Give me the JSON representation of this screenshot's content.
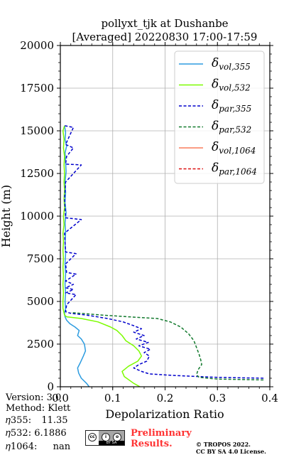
{
  "chart_data": {
    "type": "line",
    "title": "pollyxt_tjk at Dushanbe",
    "subtitle": "[Averaged] 20220830 17:00-17:59",
    "xlabel": "Depolarization Ratio",
    "ylabel": "Height (m)",
    "xlim": [
      0,
      0.4
    ],
    "ylim": [
      0,
      20000
    ],
    "x_ticks": [
      "0.0",
      "0.1",
      "0.2",
      "0.3",
      "0.4"
    ],
    "y_ticks": [
      "0",
      "2500",
      "5000",
      "7500",
      "10000",
      "12500",
      "15000",
      "17500",
      "20000"
    ],
    "grid": true,
    "legend_position": "top-right",
    "legend": [
      {
        "math": "vol",
        "sub": "355",
        "color": "#2d9ce0",
        "style": "solid"
      },
      {
        "math": "vol",
        "sub": "532",
        "color": "#7cfc00",
        "style": "solid"
      },
      {
        "math": "par",
        "sub": "355",
        "color": "#0000cc",
        "style": "dashed"
      },
      {
        "math": "par",
        "sub": "532",
        "color": "#137a2e",
        "style": "dashed"
      },
      {
        "math": "vol",
        "sub": "1064",
        "color": "#fa7d5c",
        "style": "solid"
      },
      {
        "math": "par",
        "sub": "1064",
        "color": "#dd1111",
        "style": "dashed"
      }
    ],
    "series": [
      {
        "color": "#2d9ce0",
        "style": "solid",
        "points": [
          [
            0.055,
            0
          ],
          [
            0.05,
            200
          ],
          [
            0.04,
            500
          ],
          [
            0.035,
            800
          ],
          [
            0.033,
            1100
          ],
          [
            0.038,
            1400
          ],
          [
            0.044,
            1800
          ],
          [
            0.048,
            2100
          ],
          [
            0.046,
            2500
          ],
          [
            0.04,
            2800
          ],
          [
            0.033,
            3000
          ],
          [
            0.036,
            3300
          ],
          [
            0.028,
            3500
          ],
          [
            0.018,
            3700
          ],
          [
            0.012,
            3900
          ],
          [
            0.009,
            4100
          ],
          [
            0.008,
            4300
          ],
          [
            0.01,
            4600
          ],
          [
            0.009,
            5000
          ],
          [
            0.01,
            5500
          ],
          [
            0.009,
            6000
          ],
          [
            0.01,
            6600
          ],
          [
            0.009,
            7200
          ],
          [
            0.01,
            7800
          ],
          [
            0.009,
            8400
          ],
          [
            0.01,
            9000
          ],
          [
            0.009,
            9600
          ],
          [
            0.011,
            10200
          ],
          [
            0.009,
            10800
          ],
          [
            0.01,
            11400
          ],
          [
            0.009,
            12000
          ],
          [
            0.011,
            12600
          ],
          [
            0.01,
            13200
          ],
          [
            0.009,
            13700
          ],
          [
            0.012,
            14100
          ],
          [
            0.009,
            14500
          ],
          [
            0.01,
            14900
          ],
          [
            0.008,
            15300
          ]
        ]
      },
      {
        "color": "#7cfc00",
        "style": "solid",
        "points": [
          [
            0.152,
            0
          ],
          [
            0.14,
            200
          ],
          [
            0.122,
            600
          ],
          [
            0.118,
            900
          ],
          [
            0.13,
            1200
          ],
          [
            0.148,
            1500
          ],
          [
            0.155,
            1800
          ],
          [
            0.15,
            2100
          ],
          [
            0.14,
            2400
          ],
          [
            0.125,
            2700
          ],
          [
            0.118,
            3000
          ],
          [
            0.108,
            3300
          ],
          [
            0.096,
            3500
          ],
          [
            0.072,
            3800
          ],
          [
            0.04,
            4000
          ],
          [
            0.012,
            4100
          ],
          [
            0.008,
            4200
          ],
          [
            0.005,
            4600
          ],
          [
            0.005,
            5000
          ],
          [
            0.006,
            5500
          ],
          [
            0.005,
            6000
          ],
          [
            0.006,
            6500
          ],
          [
            0.005,
            7000
          ],
          [
            0.006,
            7500
          ],
          [
            0.005,
            8000
          ],
          [
            0.006,
            8500
          ],
          [
            0.005,
            9000
          ],
          [
            0.007,
            9500
          ],
          [
            0.006,
            10000
          ],
          [
            0.008,
            10500
          ],
          [
            0.007,
            11000
          ],
          [
            0.008,
            11500
          ],
          [
            0.007,
            12000
          ],
          [
            0.008,
            12500
          ],
          [
            0.007,
            13000
          ],
          [
            0.008,
            13500
          ],
          [
            0.006,
            14000
          ],
          [
            0.007,
            14500
          ],
          [
            0.005,
            15000
          ],
          [
            0.008,
            15300
          ]
        ]
      },
      {
        "color": "#0000cc",
        "style": "dashed",
        "points": [
          [
            0.388,
            500
          ],
          [
            0.3,
            550
          ],
          [
            0.225,
            650
          ],
          [
            0.17,
            750
          ],
          [
            0.155,
            900
          ],
          [
            0.14,
            1100
          ],
          [
            0.15,
            1300
          ],
          [
            0.165,
            1500
          ],
          [
            0.17,
            1800
          ],
          [
            0.16,
            2000
          ],
          [
            0.172,
            2200
          ],
          [
            0.15,
            2400
          ],
          [
            0.168,
            2600
          ],
          [
            0.145,
            2800
          ],
          [
            0.16,
            3000
          ],
          [
            0.14,
            3200
          ],
          [
            0.155,
            3400
          ],
          [
            0.138,
            3600
          ],
          [
            0.12,
            3800
          ],
          [
            0.09,
            4000
          ],
          [
            0.05,
            4200
          ],
          [
            0.02,
            4300
          ],
          [
            0.01,
            4400
          ],
          [
            0.012,
            4800
          ],
          [
            0.03,
            5400
          ],
          [
            0.01,
            5500
          ],
          [
            0.025,
            5700
          ],
          [
            0.01,
            5800
          ],
          [
            0.025,
            6000
          ],
          [
            0.01,
            6200
          ],
          [
            0.03,
            6600
          ],
          [
            0.012,
            6700
          ],
          [
            0.01,
            7200
          ],
          [
            0.03,
            7800
          ],
          [
            0.01,
            7900
          ],
          [
            0.008,
            9000
          ],
          [
            0.04,
            9800
          ],
          [
            0.01,
            9900
          ],
          [
            0.008,
            11000
          ],
          [
            0.01,
            12000
          ],
          [
            0.04,
            13000
          ],
          [
            0.01,
            13050
          ],
          [
            0.012,
            13500
          ],
          [
            0.025,
            14000
          ],
          [
            0.01,
            14200
          ],
          [
            0.025,
            15200
          ],
          [
            0.008,
            15300
          ]
        ]
      },
      {
        "color": "#137a2e",
        "style": "dashed",
        "points": [
          [
            0.388,
            400
          ],
          [
            0.3,
            450
          ],
          [
            0.265,
            550
          ],
          [
            0.26,
            700
          ],
          [
            0.263,
            1000
          ],
          [
            0.27,
            1300
          ],
          [
            0.268,
            1600
          ],
          [
            0.265,
            1900
          ],
          [
            0.26,
            2300
          ],
          [
            0.255,
            2700
          ],
          [
            0.245,
            3100
          ],
          [
            0.23,
            3500
          ],
          [
            0.21,
            3800
          ],
          [
            0.185,
            4000
          ],
          [
            0.13,
            4100
          ],
          [
            0.08,
            4200
          ],
          [
            0.04,
            4300
          ],
          [
            0.02,
            4350
          ]
        ]
      }
    ]
  },
  "footer": {
    "version": "Version: 3.0",
    "method": "Method: Klett",
    "eta355_label": "𝜂355:",
    "eta355_value": "11.35",
    "eta532_label": "𝜂532:",
    "eta532_value": "6.1886",
    "eta1064_label": "𝜂1064:",
    "eta1064_value": "nan",
    "preliminary_line1": "Preliminary",
    "preliminary_line2": "Results.",
    "license_line1": "© TROPOS 2022.",
    "license_line2": "CC BY SA 4.0 License."
  }
}
